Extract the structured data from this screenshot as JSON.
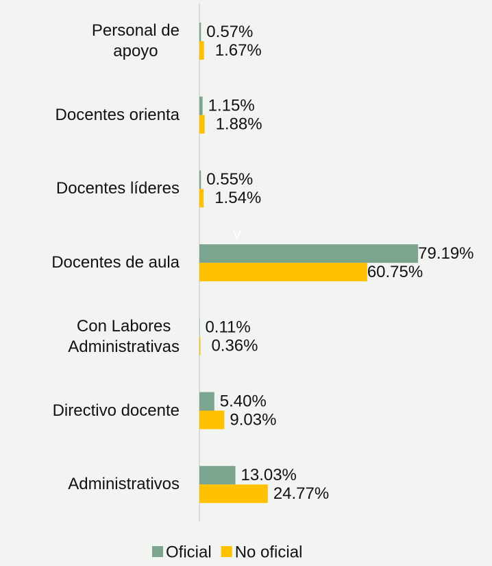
{
  "chart_data": {
    "type": "hbar",
    "categories": [
      "Personal de\napoyo",
      "Docentes orienta",
      "Docentes líderes",
      "Docentes de aula",
      "Con Labores\nAdministrativas",
      "Directivo docente",
      "Administrativos"
    ],
    "series": [
      {
        "name": "Oficial",
        "color": "#7ba58f",
        "values": [
          0.57,
          1.15,
          0.55,
          79.19,
          0.11,
          5.4,
          13.03
        ],
        "value_labels": [
          "0.57%",
          "1.15%",
          "0.55%",
          "79.19%",
          "0.11%",
          "5.40%",
          "13.03%"
        ]
      },
      {
        "name": "No oficial",
        "color": "#ffc000",
        "values": [
          1.67,
          1.88,
          1.54,
          60.75,
          0.36,
          9.03,
          24.77
        ],
        "value_labels": [
          "1.67%",
          "1.88%",
          "1.54%",
          "60.75%",
          "0.36%",
          "9.03%",
          "24.77%"
        ]
      }
    ],
    "xlim": [
      0,
      100
    ],
    "annotation": "v",
    "legend": "bottom"
  }
}
